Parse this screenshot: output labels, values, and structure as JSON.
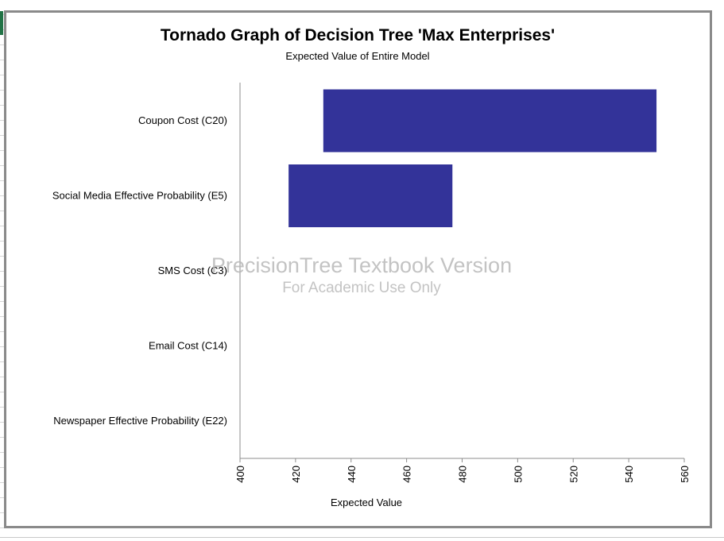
{
  "chart_data": {
    "type": "bar",
    "orientation": "horizontal",
    "title": "Tornado Graph of Decision Tree 'Max Enterprises'",
    "subtitle": "Expected Value of Entire Model",
    "xlabel": "Expected Value",
    "ylabel": "",
    "xlim": [
      400,
      560
    ],
    "xticks": [
      "400",
      "420",
      "440",
      "460",
      "480",
      "500",
      "520",
      "540",
      "560"
    ],
    "categories": [
      "Coupon Cost (C20)",
      "Social Media Effective Probability (E5)",
      "SMS Cost (C3)",
      "Email Cost (C14)",
      "Newspaper Effective Probability (E22)"
    ],
    "ranges": [
      [
        430,
        550
      ],
      [
        417.5,
        476.5
      ],
      null,
      null,
      null
    ],
    "bar_color": "#333399",
    "grid": false,
    "legend": "none"
  },
  "watermark": {
    "line1": "PrecisionTree Textbook Version",
    "line2": "For Academic Use Only"
  }
}
